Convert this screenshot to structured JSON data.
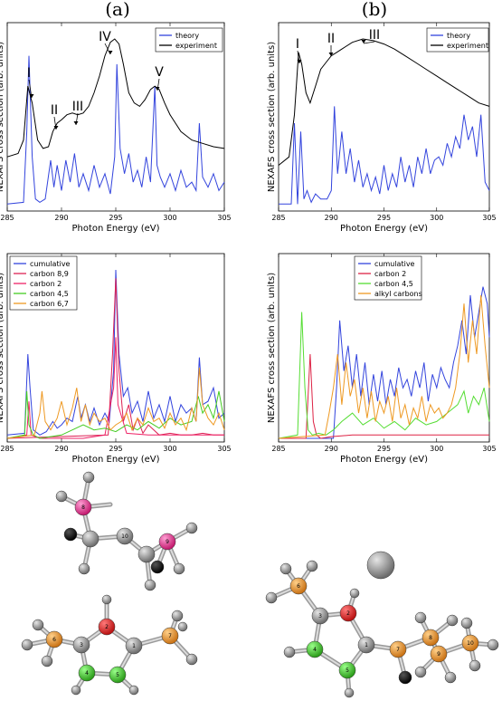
{
  "panel_labels": [
    "(a)",
    "(b)"
  ],
  "chart_data": [
    {
      "type": "line",
      "panel": "(a) top",
      "xlabel": "Photon Energy (eV)",
      "ylabel": "NEXAFS cross section (arb. units)",
      "xlim": [
        285,
        305
      ],
      "xticks": [
        "285",
        "290",
        "295",
        "300",
        "305"
      ],
      "legend": "top-right",
      "annotations": [
        "I",
        "II",
        "III",
        "IV",
        "V"
      ],
      "series": [
        {
          "name": "theory",
          "color": "#3344dd",
          "x": [
            285,
            286.5,
            286.8,
            287,
            287.3,
            287.6,
            288,
            288.5,
            289,
            289.3,
            289.6,
            290,
            290.4,
            290.8,
            291.2,
            291.6,
            292,
            292.5,
            293,
            293.5,
            294,
            294.5,
            294.9,
            295.1,
            295.4,
            295.8,
            296.2,
            296.6,
            297,
            297.4,
            297.8,
            298.2,
            298.6,
            298.8,
            299.1,
            299.5,
            300,
            300.5,
            301,
            301.5,
            302,
            302.4,
            302.7,
            303,
            303.5,
            304,
            304.5,
            305
          ],
          "y": [
            0.02,
            0.03,
            0.45,
            0.9,
            0.3,
            0.05,
            0.03,
            0.05,
            0.28,
            0.12,
            0.25,
            0.1,
            0.28,
            0.15,
            0.32,
            0.12,
            0.2,
            0.1,
            0.25,
            0.12,
            0.2,
            0.08,
            0.3,
            0.85,
            0.35,
            0.2,
            0.32,
            0.15,
            0.22,
            0.12,
            0.3,
            0.15,
            0.72,
            0.25,
            0.18,
            0.12,
            0.2,
            0.1,
            0.22,
            0.12,
            0.15,
            0.1,
            0.5,
            0.18,
            0.12,
            0.2,
            0.1,
            0.15
          ]
        },
        {
          "name": "experiment",
          "color": "#000000",
          "x": [
            285,
            286,
            286.5,
            286.9,
            287.3,
            287.8,
            288.3,
            288.8,
            289.2,
            289.6,
            290,
            290.5,
            291,
            291.5,
            292,
            292.5,
            293,
            293.5,
            294,
            294.5,
            294.9,
            295.3,
            295.7,
            296.2,
            296.7,
            297.2,
            297.7,
            298.2,
            298.6,
            299,
            299.5,
            300,
            300.5,
            301,
            302,
            303,
            304,
            305
          ],
          "y": [
            0.3,
            0.32,
            0.4,
            0.72,
            0.62,
            0.4,
            0.35,
            0.36,
            0.45,
            0.5,
            0.52,
            0.55,
            0.56,
            0.55,
            0.56,
            0.6,
            0.68,
            0.78,
            0.9,
            0.98,
            1.0,
            0.97,
            0.85,
            0.68,
            0.62,
            0.6,
            0.64,
            0.7,
            0.72,
            0.7,
            0.62,
            0.55,
            0.5,
            0.45,
            0.4,
            0.38,
            0.36,
            0.35
          ]
        }
      ]
    },
    {
      "type": "line",
      "panel": "(b) top",
      "xlabel": "Photon Energy (eV)",
      "ylabel": "NEXAFS cross section (arb. units)",
      "xlim": [
        285,
        305
      ],
      "xticks": [
        "285",
        "290",
        "295",
        "300",
        "305"
      ],
      "legend": "top-right",
      "annotations": [
        "I",
        "II",
        "III"
      ],
      "series": [
        {
          "name": "theory",
          "color": "#3344dd",
          "x": [
            285,
            286.2,
            286.5,
            286.8,
            287.1,
            287.4,
            287.7,
            288.1,
            288.5,
            289,
            289.6,
            290,
            290.3,
            290.6,
            291,
            291.4,
            291.8,
            292.2,
            292.6,
            293,
            293.4,
            293.8,
            294.2,
            294.6,
            295,
            295.4,
            295.8,
            296.2,
            296.6,
            297,
            297.4,
            297.8,
            298.2,
            298.6,
            299,
            299.4,
            299.8,
            300.2,
            300.6,
            301,
            301.4,
            301.8,
            302.2,
            302.6,
            303,
            303.4,
            303.8,
            304.2,
            304.6,
            305
          ],
          "y": [
            0.02,
            0.02,
            0.5,
            0.02,
            0.45,
            0.05,
            0.1,
            0.03,
            0.08,
            0.05,
            0.05,
            0.1,
            0.6,
            0.2,
            0.45,
            0.2,
            0.35,
            0.15,
            0.28,
            0.12,
            0.2,
            0.1,
            0.18,
            0.08,
            0.25,
            0.1,
            0.2,
            0.12,
            0.3,
            0.15,
            0.25,
            0.12,
            0.3,
            0.2,
            0.35,
            0.2,
            0.28,
            0.3,
            0.25,
            0.38,
            0.3,
            0.42,
            0.35,
            0.55,
            0.4,
            0.48,
            0.3,
            0.55,
            0.15,
            0.1
          ]
        },
        {
          "name": "experiment",
          "color": "#000000",
          "x": [
            285,
            286,
            286.5,
            286.9,
            287.2,
            287.6,
            288,
            288.5,
            289,
            289.5,
            290,
            290.5,
            291,
            292,
            293,
            294,
            295,
            296,
            297,
            298,
            299,
            300,
            301,
            302,
            303,
            304,
            305
          ],
          "y": [
            0.25,
            0.3,
            0.55,
            0.92,
            0.85,
            0.68,
            0.62,
            0.72,
            0.82,
            0.86,
            0.9,
            0.92,
            0.94,
            0.98,
            1.0,
            0.99,
            0.97,
            0.94,
            0.9,
            0.86,
            0.82,
            0.78,
            0.74,
            0.7,
            0.66,
            0.62,
            0.6
          ]
        }
      ]
    },
    {
      "type": "line",
      "panel": "(a) bottom",
      "xlabel": "Photon Energy (eV)",
      "ylabel": "NEXAFS cross section (arb. units)",
      "xlim": [
        285,
        305
      ],
      "xticks": [
        "285",
        "290",
        "295",
        "300",
        "305"
      ],
      "legend": "top-left",
      "series": [
        {
          "name": "cumulative",
          "label": "cumulative",
          "color": "#3344dd",
          "x": [
            285,
            286.6,
            286.9,
            287.1,
            287.4,
            288,
            288.6,
            289.2,
            289.6,
            290,
            290.5,
            291,
            291.5,
            291.8,
            292.2,
            292.6,
            293,
            293.5,
            294,
            294.4,
            294.8,
            295,
            295.3,
            295.7,
            296.1,
            296.5,
            297,
            297.5,
            298,
            298.5,
            299,
            299.5,
            300,
            300.5,
            301,
            301.5,
            302,
            302.4,
            302.7,
            303,
            303.5,
            304,
            304.5,
            305
          ],
          "y": [
            0.02,
            0.03,
            0.5,
            0.3,
            0.05,
            0.02,
            0.04,
            0.1,
            0.06,
            0.08,
            0.12,
            0.1,
            0.25,
            0.12,
            0.2,
            0.1,
            0.18,
            0.08,
            0.15,
            0.1,
            0.4,
            1.0,
            0.5,
            0.25,
            0.3,
            0.15,
            0.22,
            0.1,
            0.28,
            0.12,
            0.2,
            0.1,
            0.25,
            0.1,
            0.2,
            0.15,
            0.18,
            0.1,
            0.48,
            0.2,
            0.22,
            0.3,
            0.12,
            0.15
          ]
        },
        {
          "name": "carbon 8,9",
          "label": "carbon   8,9",
          "color": "#dd2255",
          "x": [
            285,
            294.3,
            294.7,
            295,
            295.3,
            295.7,
            296.2,
            296.6,
            297,
            297.5,
            298,
            299,
            300,
            301,
            302,
            303,
            304,
            305
          ],
          "y": [
            0.0,
            0.02,
            0.5,
            0.95,
            0.4,
            0.1,
            0.2,
            0.05,
            0.12,
            0.03,
            0.08,
            0.02,
            0.03,
            0.02,
            0.02,
            0.03,
            0.02,
            0.02
          ]
        },
        {
          "name": "carbon 2",
          "label": "carbon   2",
          "color": "#ee2266",
          "x": [
            285,
            286.8,
            287,
            287.2,
            288,
            290,
            292,
            294,
            294.8,
            295,
            295.2,
            296,
            298,
            300,
            302,
            305
          ],
          "y": [
            0.0,
            0.02,
            0.22,
            0.02,
            0.0,
            0.0,
            0.0,
            0.02,
            0.3,
            0.6,
            0.2,
            0.03,
            0.02,
            0.02,
            0.02,
            0.02
          ]
        },
        {
          "name": "carbon 4,5",
          "label": "carbon   4,5",
          "color": "#44cc22",
          "x": [
            285,
            286.6,
            286.8,
            287,
            287.4,
            288,
            290,
            291,
            292,
            293,
            294,
            295,
            296,
            297,
            298,
            299,
            300,
            301,
            302,
            302.6,
            303,
            303.5,
            304,
            304.5,
            305
          ],
          "y": [
            0.0,
            0.02,
            0.28,
            0.08,
            0.02,
            0.0,
            0.02,
            0.05,
            0.08,
            0.05,
            0.06,
            0.04,
            0.08,
            0.05,
            0.1,
            0.06,
            0.12,
            0.08,
            0.1,
            0.25,
            0.15,
            0.2,
            0.12,
            0.28,
            0.1
          ]
        },
        {
          "name": "carbon 6,7",
          "label": "carbon   6,7",
          "color": "#ee9922",
          "x": [
            285,
            287.5,
            288,
            288.2,
            288.5,
            289,
            289.6,
            290,
            290.5,
            291,
            291.4,
            291.8,
            292.2,
            292.6,
            293,
            293.5,
            294,
            294.5,
            295,
            295.5,
            296,
            296.5,
            297,
            297.5,
            298,
            298.5,
            299,
            299.5,
            300,
            300.5,
            301,
            301.5,
            302,
            302.4,
            302.7,
            303,
            303.5,
            304,
            304.5,
            305
          ],
          "y": [
            0.0,
            0.02,
            0.15,
            0.28,
            0.1,
            0.05,
            0.12,
            0.22,
            0.08,
            0.18,
            0.3,
            0.1,
            0.2,
            0.08,
            0.15,
            0.1,
            0.12,
            0.05,
            0.08,
            0.1,
            0.15,
            0.05,
            0.12,
            0.08,
            0.18,
            0.1,
            0.12,
            0.06,
            0.15,
            0.08,
            0.12,
            0.05,
            0.18,
            0.1,
            0.42,
            0.2,
            0.12,
            0.08,
            0.15,
            0.05
          ]
        }
      ]
    },
    {
      "type": "line",
      "panel": "(b) bottom",
      "xlabel": "Photon Energy (eV)",
      "ylabel": "NEXAFS cross section (arb. units)",
      "xlim": [
        285,
        305
      ],
      "xticks": [
        "285",
        "290",
        "295",
        "300",
        "305"
      ],
      "legend": "top-right",
      "series": [
        {
          "name": "cumulative",
          "label": "cumulative",
          "color": "#3344dd",
          "x": [
            285,
            290.2,
            290.5,
            290.8,
            291.2,
            291.6,
            292,
            292.4,
            292.8,
            293.2,
            293.6,
            294,
            294.4,
            294.8,
            295.2,
            295.6,
            296,
            296.4,
            296.8,
            297.2,
            297.6,
            298,
            298.4,
            298.8,
            299.2,
            299.6,
            300,
            300.4,
            300.8,
            301.2,
            301.6,
            302,
            302.4,
            302.8,
            303.2,
            303.6,
            304,
            304.4,
            304.8,
            305
          ],
          "y": [
            0.0,
            0.0,
            0.3,
            0.7,
            0.4,
            0.55,
            0.3,
            0.5,
            0.25,
            0.45,
            0.2,
            0.38,
            0.22,
            0.4,
            0.2,
            0.35,
            0.25,
            0.42,
            0.3,
            0.35,
            0.25,
            0.4,
            0.3,
            0.45,
            0.22,
            0.38,
            0.3,
            0.42,
            0.35,
            0.3,
            0.45,
            0.55,
            0.7,
            0.5,
            0.85,
            0.6,
            0.75,
            0.9,
            0.8,
            0.6
          ]
        },
        {
          "name": "carbon 2",
          "label": "carbon 2",
          "color": "#dd2244",
          "x": [
            285,
            287.6,
            288,
            288.3,
            288.6,
            289,
            290,
            292,
            294,
            296,
            298,
            300,
            302,
            305
          ],
          "y": [
            0.0,
            0.0,
            0.5,
            0.1,
            0.02,
            0.0,
            0.01,
            0.02,
            0.02,
            0.02,
            0.02,
            0.02,
            0.02,
            0.02
          ]
        },
        {
          "name": "carbon 4,5",
          "label": "carbon 4,5",
          "color": "#55dd33",
          "x": [
            285,
            286.8,
            287.2,
            287.5,
            287.8,
            288.2,
            288.8,
            289.5,
            290.2,
            291,
            292,
            293,
            294,
            295,
            296,
            297,
            298,
            299,
            300,
            301,
            302,
            302.6,
            303,
            303.5,
            304,
            304.5,
            305
          ],
          "y": [
            0.0,
            0.02,
            0.75,
            0.3,
            0.05,
            0.02,
            0.03,
            0.02,
            0.05,
            0.1,
            0.15,
            0.08,
            0.12,
            0.06,
            0.1,
            0.05,
            0.12,
            0.08,
            0.1,
            0.15,
            0.2,
            0.28,
            0.15,
            0.25,
            0.2,
            0.3,
            0.1
          ]
        },
        {
          "name": "alkyl carbons",
          "label": "alkyl carbons",
          "color": "#ee9922",
          "x": [
            285,
            289.4,
            289.8,
            290.2,
            290.6,
            291,
            291.4,
            291.8,
            292.2,
            292.6,
            293,
            293.4,
            293.8,
            294.2,
            294.6,
            295,
            295.4,
            295.8,
            296.2,
            296.6,
            297,
            297.4,
            297.8,
            298.2,
            298.6,
            299,
            299.4,
            299.8,
            300.2,
            300.6,
            301,
            301.4,
            301.8,
            302.2,
            302.6,
            303,
            303.4,
            303.8,
            304.2,
            304.6,
            305
          ],
          "y": [
            0.0,
            0.02,
            0.15,
            0.3,
            0.5,
            0.2,
            0.45,
            0.25,
            0.35,
            0.15,
            0.3,
            0.12,
            0.28,
            0.1,
            0.22,
            0.15,
            0.25,
            0.1,
            0.3,
            0.12,
            0.2,
            0.08,
            0.18,
            0.12,
            0.25,
            0.1,
            0.2,
            0.15,
            0.18,
            0.12,
            0.15,
            0.2,
            0.3,
            0.5,
            0.8,
            0.45,
            0.7,
            0.5,
            0.85,
            0.55,
            0.3
          ]
        }
      ]
    }
  ],
  "molecules": {
    "a_labels": [
      "8",
      "9",
      "10",
      "2",
      "3",
      "1",
      "6",
      "7",
      "4",
      "5"
    ],
    "b_labels": [
      "6",
      "3",
      "2",
      "4",
      "5",
      "1",
      "7",
      "8",
      "9",
      "10"
    ]
  }
}
